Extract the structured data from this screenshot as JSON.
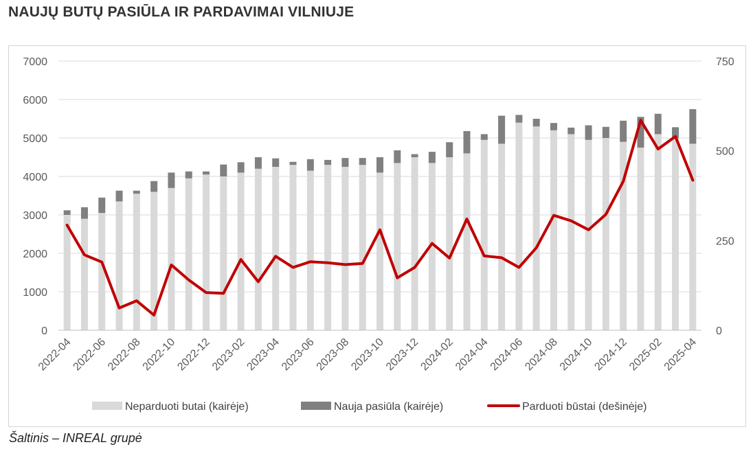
{
  "title": "NAUJŲ BUTŲ PASIŪLA IR PARDAVIMAI VILNIUJE",
  "source": "Šaltinis – INREAL grupė",
  "colors": {
    "unsold": "#d9d9d9",
    "new_supply": "#808080",
    "sold": "#c00000",
    "grid": "#d9d9d9"
  },
  "chart_data": {
    "type": "bar",
    "stacked": true,
    "categories": [
      "2022-04",
      "2022-05",
      "2022-06",
      "2022-07",
      "2022-08",
      "2022-09",
      "2022-10",
      "2022-11",
      "2022-12",
      "2023-01",
      "2023-02",
      "2023-03",
      "2023-04",
      "2023-05",
      "2023-06",
      "2023-07",
      "2023-08",
      "2023-09",
      "2023-10",
      "2023-11",
      "2023-12",
      "2024-01",
      "2024-02",
      "2024-03",
      "2024-04",
      "2024-05",
      "2024-06",
      "2024-07",
      "2024-08",
      "2024-09",
      "2024-10",
      "2024-11",
      "2024-12",
      "2025-01",
      "2025-02",
      "2025-03",
      "2025-04"
    ],
    "x_tick_labels": [
      "2022-04",
      "2022-06",
      "2022-08",
      "2022-10",
      "2022-12",
      "2023-02",
      "2023-04",
      "2023-06",
      "2023-08",
      "2023-10",
      "2023-12",
      "2024-02",
      "2024-04",
      "2024-06",
      "2024-08",
      "2024-10",
      "2024-12",
      "2025-02",
      "2025-04"
    ],
    "series": [
      {
        "name": "Neparduoti butai (kairėje)",
        "axis": "left",
        "kind": "bar",
        "values": [
          3000,
          2900,
          3050,
          3350,
          3550,
          3600,
          3700,
          3950,
          4050,
          4000,
          4100,
          4200,
          4250,
          4300,
          4150,
          4300,
          4250,
          4300,
          4100,
          4350,
          4500,
          4350,
          4500,
          4600,
          4950,
          4850,
          5400,
          5300,
          5200,
          5100,
          4950,
          5000,
          4900,
          4750,
          5100,
          5000,
          4850
        ]
      },
      {
        "name": "Nauja pasiūla (kairėje)",
        "axis": "left",
        "kind": "bar",
        "values": [
          120,
          300,
          400,
          280,
          80,
          280,
          400,
          180,
          80,
          310,
          270,
          300,
          220,
          80,
          300,
          130,
          230,
          180,
          400,
          330,
          80,
          290,
          390,
          580,
          150,
          730,
          200,
          200,
          190,
          170,
          380,
          290,
          550,
          800,
          530,
          280,
          900
        ]
      },
      {
        "name": "Parduoti būstai (dešinėje)",
        "axis": "right",
        "kind": "line",
        "values": [
          293,
          210,
          190,
          62,
          82,
          42,
          182,
          140,
          105,
          103,
          197,
          135,
          206,
          175,
          191,
          188,
          183,
          186,
          280,
          146,
          175,
          242,
          201,
          310,
          207,
          202,
          175,
          230,
          320,
          305,
          280,
          323,
          415,
          585,
          505,
          540,
          418
        ]
      }
    ],
    "y_left": {
      "min": 0,
      "max": 7000,
      "ticks": [
        0,
        1000,
        2000,
        3000,
        4000,
        5000,
        6000,
        7000
      ]
    },
    "y_right": {
      "min": 0,
      "max": 750,
      "ticks": [
        0,
        250,
        500,
        750
      ]
    },
    "grid": true,
    "legend_position": "bottom"
  }
}
